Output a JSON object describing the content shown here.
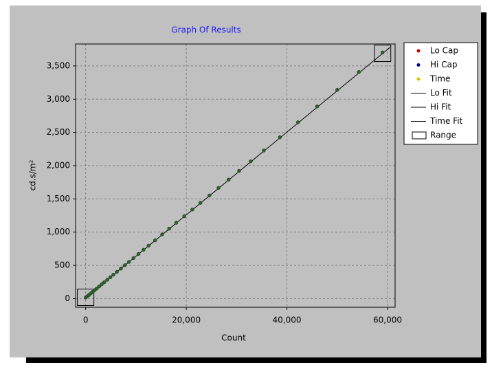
{
  "chart_data": {
    "type": "scatter",
    "title": "Graph Of Results",
    "xlabel": "Count",
    "ylabel": "cd.s/m²",
    "xlim": [
      -2000,
      61500
    ],
    "ylim": [
      -130,
      3830
    ],
    "xticks": [
      0,
      {
        "value": 20000,
        "label": "20,000"
      },
      {
        "value": 40000,
        "label": "40,000"
      },
      {
        "value": 60000,
        "label": "60,000"
      }
    ],
    "yticks": [
      0,
      500,
      {
        "value": 1000,
        "label": "1,000"
      },
      {
        "value": 1500,
        "label": "1,500"
      },
      {
        "value": 2000,
        "label": "2,000"
      },
      {
        "value": 2500,
        "label": "2,500"
      },
      {
        "value": 3000,
        "label": "3,000"
      },
      {
        "value": 3500,
        "label": "3,500"
      }
    ],
    "grid": true,
    "legend": "right",
    "series": [
      {
        "name": "Lo Cap",
        "color": "#cc0000",
        "kind": "points",
        "x": [],
        "values": []
      },
      {
        "name": "Hi Cap",
        "color": "#000099",
        "kind": "points",
        "x": [],
        "values": []
      },
      {
        "name": "Time",
        "color": "#cccc00",
        "marker_color": "#2f5f2f",
        "kind": "points",
        "x": [
          0,
          300,
          600,
          1000,
          1400,
          1800,
          2200,
          2700,
          3200,
          3700,
          4300,
          4900,
          5500,
          6200,
          7000,
          7800,
          8600,
          9500,
          10500,
          11500,
          12500,
          13800,
          15200,
          16600,
          18000,
          19600,
          21200,
          22800,
          24600,
          26400,
          28400,
          30500,
          32800,
          35400,
          38600,
          42200,
          46000,
          50000,
          54300,
          59000
        ],
        "values": [
          15,
          34,
          52,
          77,
          102,
          127,
          152,
          184,
          215,
          246,
          284,
          321,
          359,
          402,
          452,
          502,
          552,
          609,
          671,
          734,
          796,
          877,
          965,
          1052,
          1140,
          1240,
          1340,
          1440,
          1552,
          1665,
          1790,
          1921,
          2065,
          2227,
          2427,
          2652,
          2890,
          3140,
          3409,
          3702
        ]
      },
      {
        "name": "Lo Fit",
        "color": "#000000",
        "kind": "line",
        "x": [],
        "values": []
      },
      {
        "name": "Hi Fit",
        "color": "#000000",
        "kind": "line",
        "x": [],
        "values": []
      },
      {
        "name": "Time Fit",
        "color": "#000000",
        "kind": "line",
        "x": [
          0,
          60500
        ],
        "values": [
          15,
          3780
        ]
      },
      {
        "name": "Range",
        "color": "#000000",
        "kind": "range",
        "x": [
          0,
          59000
        ],
        "values": [
          20,
          3690
        ]
      }
    ]
  }
}
